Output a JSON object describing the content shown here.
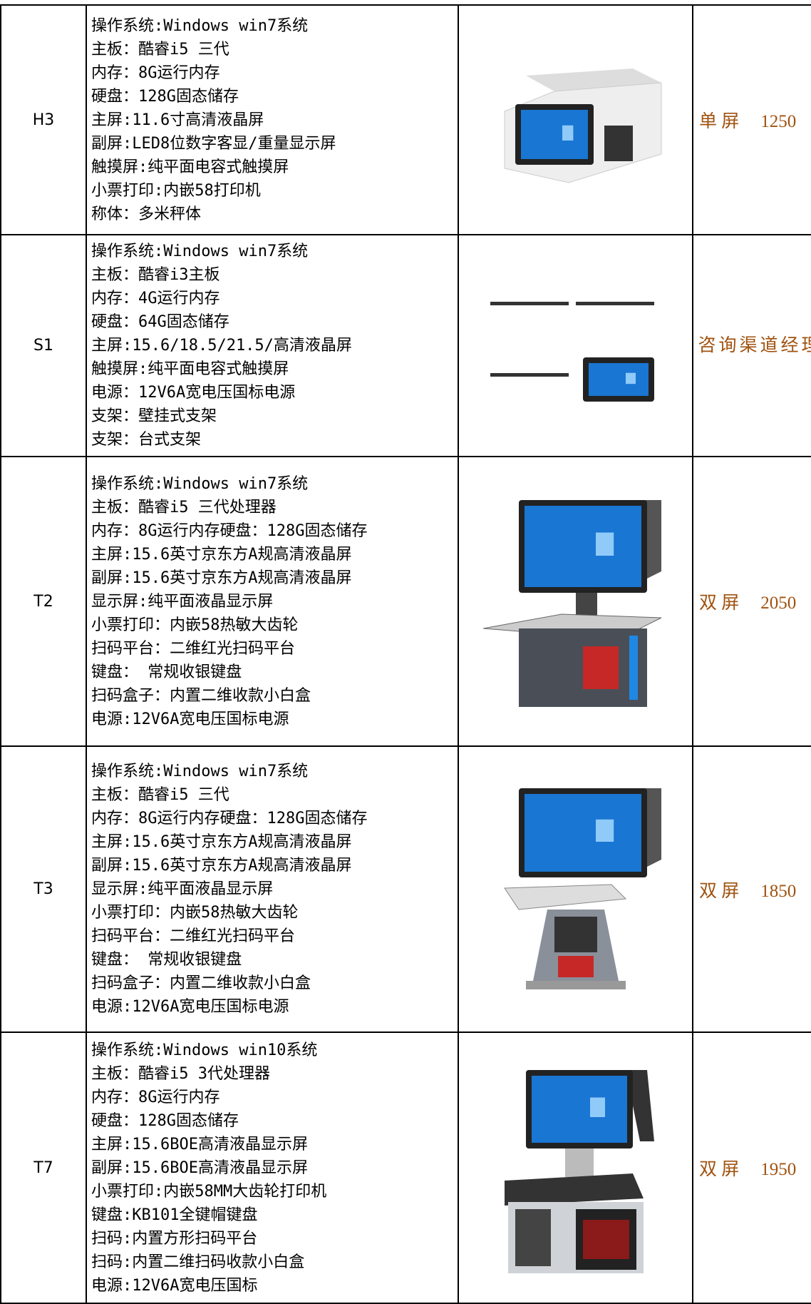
{
  "table": {
    "rows": [
      {
        "model": "H3",
        "specs": [
          "操作系统:Windows win7系统",
          "主板：酷睿i5 三代",
          "内存：8G运行内存",
          "硬盘：128G固态储存",
          "主屏:11.6寸高清液晶屏",
          "副屏:LED8位数字客显/重量显示屏",
          "触摸屏:纯平面电容式触摸屏",
          "小票打印:内嵌58打印机",
          "称体：多米秤体"
        ],
        "price_label": "单 屏",
        "price": "1250"
      },
      {
        "model": "S1",
        "specs": [
          "操作系统:Windows win7系统",
          "主板：酷睿i3主板",
          "内存：4G运行内存",
          "硬盘：64G固态储存",
          "主屏:15.6/18.5/21.5/高清液晶屏",
          "触摸屏:纯平面电容式触摸屏",
          "电源：12V6A宽电压国标电源",
          "支架：壁挂式支架",
          "支架：台式支架"
        ],
        "price_label": "咨询渠道经理"
      },
      {
        "model": "T2",
        "specs": [
          "操作系统:Windows win7系统",
          "主板：酷睿i5 三代处理器",
          "内存：8G运行内存硬盘：128G固态储存",
          "主屏:15.6英寸京东方A规高清液晶屏",
          "副屏:15.6英寸京东方A规高清液晶屏",
          "显示屏:纯平面液晶显示屏",
          "小票打印：内嵌58热敏大齿轮",
          "扫码平台：二维红光扫码平台",
          "键盘： 常规收银键盘",
          "扫码盒子：内置二维收款小白盒",
          "电源:12V6A宽电压国标电源"
        ],
        "price_label": "双 屏",
        "price": "2050"
      },
      {
        "model": "T3",
        "specs": [
          "操作系统:Windows win7系统",
          "主板：酷睿i5 三代",
          "内存：8G运行内存硬盘：128G固态储存",
          "主屏:15.6英寸京东方A规高清液晶屏",
          "副屏:15.6英寸京东方A规高清液晶屏",
          "显示屏:纯平面液晶显示屏",
          "小票打印：内嵌58热敏大齿轮",
          "扫码平台：二维红光扫码平台",
          "键盘： 常规收银键盘",
          "扫码盒子：内置二维收款小白盒",
          "电源:12V6A宽电压国标电源"
        ],
        "price_label": "双 屏",
        "price": "1850"
      },
      {
        "model": "T7",
        "specs": [
          "操作系统:Windows win10系统",
          "主板：酷睿i5 3代处理器",
          "内存：8G运行内存",
          "硬盘：128G固态储存",
          "主屏:15.6BOE高清液晶显示屏",
          "副屏:15.6BOE高清液晶显示屏",
          "小票打印:内嵌58MM大齿轮打印机",
          "键盘:KB101全键帽键盘",
          "扫码:内置方形扫码平台",
          "扫码:内置二维扫码收款小白盒",
          "电源:12V6A宽电压国标"
        ],
        "price_label": "双 屏",
        "price": "1950"
      }
    ]
  }
}
